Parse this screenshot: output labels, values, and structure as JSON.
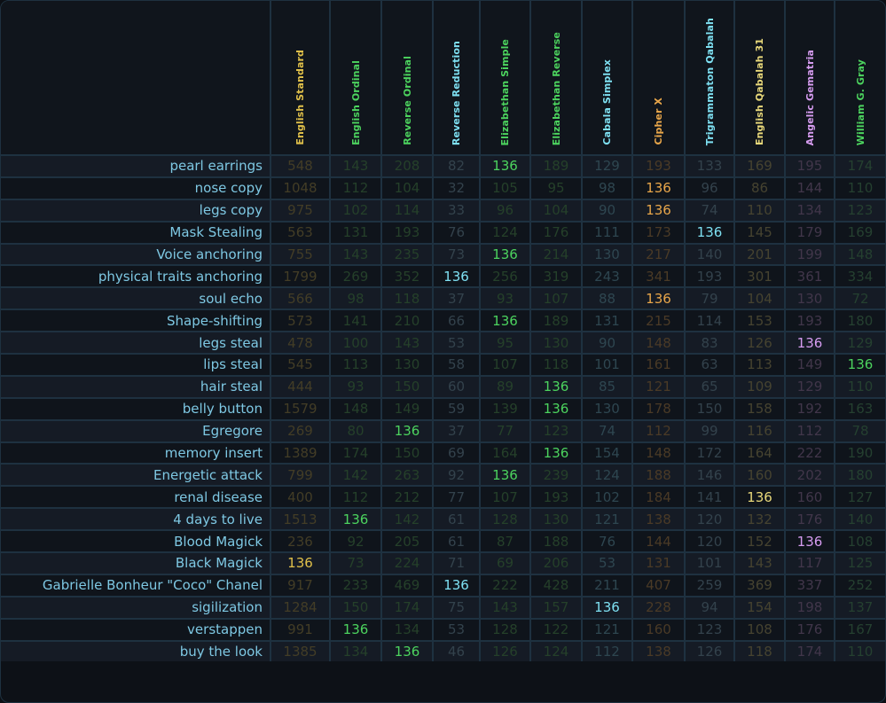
{
  "columns": [
    {
      "name": "English Standard",
      "color": "#e0c04a",
      "dim": "#433d26"
    },
    {
      "name": "English Ordinal",
      "color": "#4cd35e",
      "dim": "#25402a"
    },
    {
      "name": "Reverse Ordinal",
      "color": "#4cd35e",
      "dim": "#25402a"
    },
    {
      "name": "Reverse Reduction",
      "color": "#7ee0f2",
      "dim": "#33424c"
    },
    {
      "name": "Elizabethan Simple",
      "color": "#4cd35e",
      "dim": "#25402a"
    },
    {
      "name": "Elizabethan Reverse",
      "color": "#4cd35e",
      "dim": "#25402a"
    },
    {
      "name": "Cabala Simplex",
      "color": "#7ee0f2",
      "dim": "#2e4650"
    },
    {
      "name": "Cipher X",
      "color": "#e8a64a",
      "dim": "#4a3a26"
    },
    {
      "name": "Trigrammaton Qabalah",
      "color": "#7ee0f2",
      "dim": "#33424c"
    },
    {
      "name": "English Qabalah 31",
      "color": "#e8d87a",
      "dim": "#464330"
    },
    {
      "name": "Angelic Gematria",
      "color": "#d69cf0",
      "dim": "#41364a"
    },
    {
      "name": "William G. Gray",
      "color": "#4cd35e",
      "dim": "#254030"
    }
  ],
  "rows": [
    {
      "label": "pearl earrings",
      "values": [
        "548",
        "143",
        "208",
        "82",
        "136",
        "189",
        "129",
        "193",
        "133",
        "169",
        "195",
        "174"
      ]
    },
    {
      "label": "nose copy",
      "values": [
        "1048",
        "112",
        "104",
        "32",
        "105",
        "95",
        "98",
        "136",
        "96",
        "86",
        "144",
        "110"
      ]
    },
    {
      "label": "legs copy",
      "values": [
        "975",
        "102",
        "114",
        "33",
        "96",
        "104",
        "90",
        "136",
        "74",
        "110",
        "134",
        "123"
      ]
    },
    {
      "label": "Mask Stealing",
      "values": [
        "563",
        "131",
        "193",
        "76",
        "124",
        "176",
        "111",
        "173",
        "136",
        "145",
        "179",
        "169"
      ]
    },
    {
      "label": "Voice anchoring",
      "values": [
        "755",
        "143",
        "235",
        "73",
        "136",
        "214",
        "130",
        "217",
        "140",
        "201",
        "199",
        "148"
      ]
    },
    {
      "label": "physical traits anchoring",
      "values": [
        "1799",
        "269",
        "352",
        "136",
        "256",
        "319",
        "243",
        "341",
        "193",
        "301",
        "361",
        "334"
      ]
    },
    {
      "label": "soul echo",
      "values": [
        "566",
        "98",
        "118",
        "37",
        "93",
        "107",
        "88",
        "136",
        "79",
        "104",
        "130",
        "72"
      ]
    },
    {
      "label": "Shape-shifting",
      "values": [
        "573",
        "141",
        "210",
        "66",
        "136",
        "189",
        "131",
        "215",
        "114",
        "153",
        "193",
        "180"
      ]
    },
    {
      "label": "legs steal",
      "values": [
        "478",
        "100",
        "143",
        "53",
        "95",
        "130",
        "90",
        "148",
        "83",
        "126",
        "136",
        "129"
      ]
    },
    {
      "label": "lips steal",
      "values": [
        "545",
        "113",
        "130",
        "58",
        "107",
        "118",
        "101",
        "161",
        "63",
        "113",
        "149",
        "136"
      ]
    },
    {
      "label": "hair steal",
      "values": [
        "444",
        "93",
        "150",
        "60",
        "89",
        "136",
        "85",
        "121",
        "65",
        "109",
        "129",
        "110"
      ]
    },
    {
      "label": "belly button",
      "values": [
        "1579",
        "148",
        "149",
        "59",
        "139",
        "136",
        "130",
        "178",
        "150",
        "158",
        "192",
        "163"
      ]
    },
    {
      "label": "Egregore",
      "values": [
        "269",
        "80",
        "136",
        "37",
        "77",
        "123",
        "74",
        "112",
        "99",
        "116",
        "112",
        "78"
      ]
    },
    {
      "label": "memory insert",
      "values": [
        "1389",
        "174",
        "150",
        "69",
        "164",
        "136",
        "154",
        "148",
        "172",
        "164",
        "222",
        "190"
      ]
    },
    {
      "label": "Energetic attack",
      "values": [
        "799",
        "142",
        "263",
        "92",
        "136",
        "239",
        "124",
        "188",
        "146",
        "160",
        "202",
        "180"
      ]
    },
    {
      "label": "renal disease",
      "values": [
        "400",
        "112",
        "212",
        "77",
        "107",
        "193",
        "102",
        "184",
        "141",
        "136",
        "160",
        "127"
      ]
    },
    {
      "label": "4 days to live",
      "values": [
        "1513",
        "136",
        "142",
        "61",
        "128",
        "130",
        "121",
        "138",
        "120",
        "132",
        "176",
        "140"
      ]
    },
    {
      "label": "Blood Magick",
      "values": [
        "236",
        "92",
        "205",
        "61",
        "87",
        "188",
        "76",
        "144",
        "120",
        "152",
        "136",
        "108"
      ]
    },
    {
      "label": "Black Magick",
      "values": [
        "136",
        "73",
        "224",
        "71",
        "69",
        "206",
        "53",
        "131",
        "101",
        "143",
        "117",
        "125"
      ]
    },
    {
      "label": "Gabrielle Bonheur \"Coco\" Chanel",
      "values": [
        "917",
        "233",
        "469",
        "136",
        "222",
        "428",
        "211",
        "407",
        "259",
        "369",
        "337",
        "252"
      ]
    },
    {
      "label": "sigilization",
      "values": [
        "1284",
        "150",
        "174",
        "75",
        "143",
        "157",
        "136",
        "228",
        "94",
        "154",
        "198",
        "137"
      ]
    },
    {
      "label": "verstappen",
      "values": [
        "991",
        "136",
        "134",
        "53",
        "128",
        "122",
        "121",
        "160",
        "123",
        "108",
        "176",
        "167"
      ]
    },
    {
      "label": "buy the look",
      "values": [
        "1385",
        "134",
        "136",
        "46",
        "126",
        "124",
        "112",
        "138",
        "126",
        "118",
        "174",
        "110"
      ]
    }
  ],
  "match_value": "136"
}
